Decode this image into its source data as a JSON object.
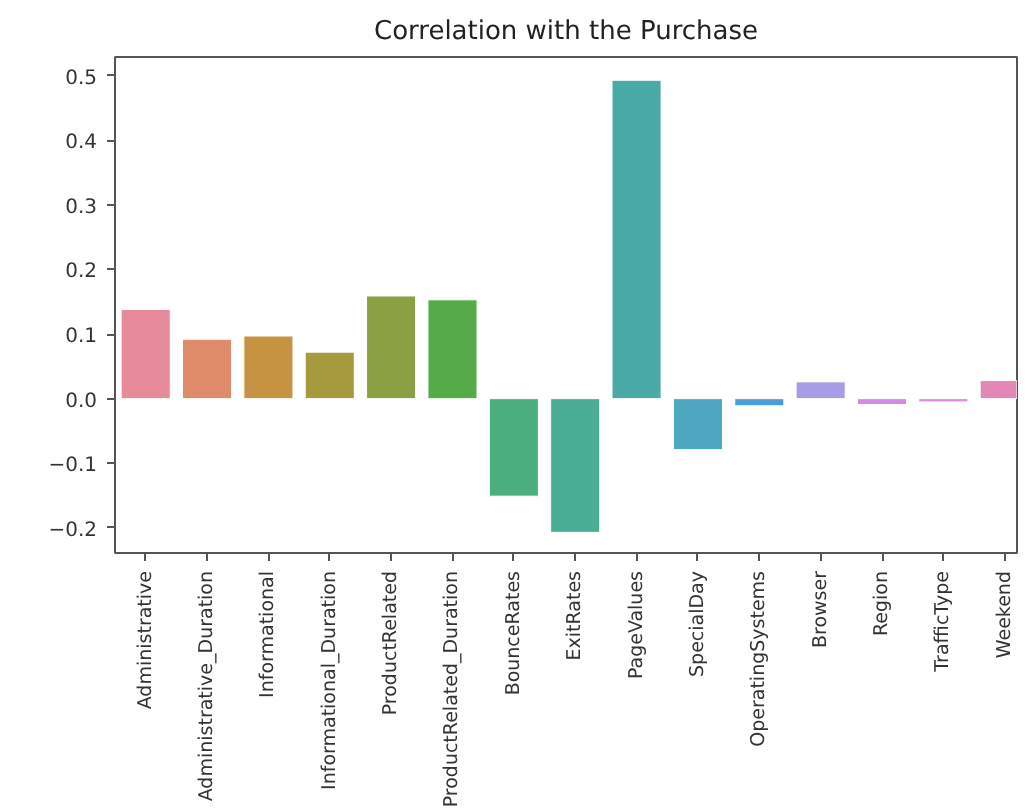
{
  "chart_data": {
    "type": "bar",
    "title": "Correlation with the Purchase",
    "categories": [
      "Administrative",
      "Administrative_Duration",
      "Informational",
      "Informational_Duration",
      "ProductRelated",
      "ProductRelated_Duration",
      "BounceRates",
      "ExitRates",
      "PageValues",
      "SpecialDay",
      "OperatingSystems",
      "Browser",
      "Region",
      "TrafficType",
      "Weekend"
    ],
    "values": [
      0.138,
      0.092,
      0.097,
      0.072,
      0.159,
      0.153,
      -0.151,
      -0.207,
      0.493,
      -0.079,
      -0.011,
      0.026,
      -0.009,
      -0.005,
      0.028
    ],
    "colors": [
      "#e78a9a",
      "#e08b6a",
      "#c59342",
      "#a69a3f",
      "#8aa043",
      "#55ab48",
      "#4aae7e",
      "#4aad96",
      "#4aaaa8",
      "#4ea7c0",
      "#4c9cdc",
      "#a59ee6",
      "#cf8be6",
      "#e48ad6",
      "#e388b6"
    ],
    "ylim": [
      -0.239,
      0.529
    ],
    "yticks": [
      {
        "value": -0.2,
        "label": "−0.2"
      },
      {
        "value": -0.1,
        "label": "−0.1"
      },
      {
        "value": 0,
        "label": "0.0"
      },
      0.1,
      0.2,
      0.3,
      0.4,
      0.5
    ],
    "grid": false
  }
}
